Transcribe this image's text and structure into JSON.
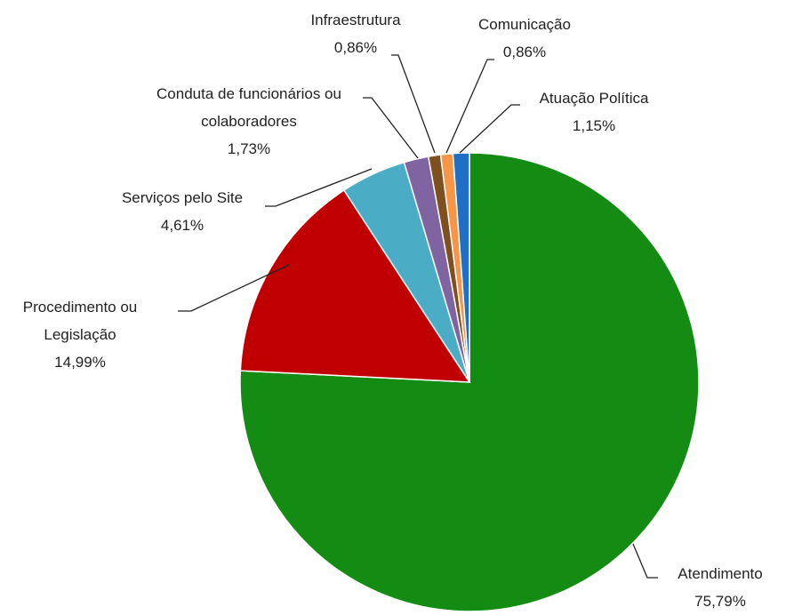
{
  "chart_data": {
    "type": "pie",
    "categories": [
      "Atendimento",
      "Procedimento ou Legislação",
      "Serviços pelo Site",
      "Conduta de funcionários ou colaboradores",
      "Infraestrutura",
      "Comunicação",
      "Atuação Política"
    ],
    "values": [
      75.79,
      14.99,
      4.61,
      1.73,
      0.86,
      0.86,
      1.15
    ],
    "value_labels": [
      "75,79%",
      "14,99%",
      "4,61%",
      "1,73%",
      "0,86%",
      "0,86%",
      "1,15%"
    ],
    "colors": [
      "#148c14",
      "#c00000",
      "#4bacc6",
      "#8064a2",
      "#7f4f1f",
      "#f79646",
      "#1f6fc6"
    ]
  }
}
